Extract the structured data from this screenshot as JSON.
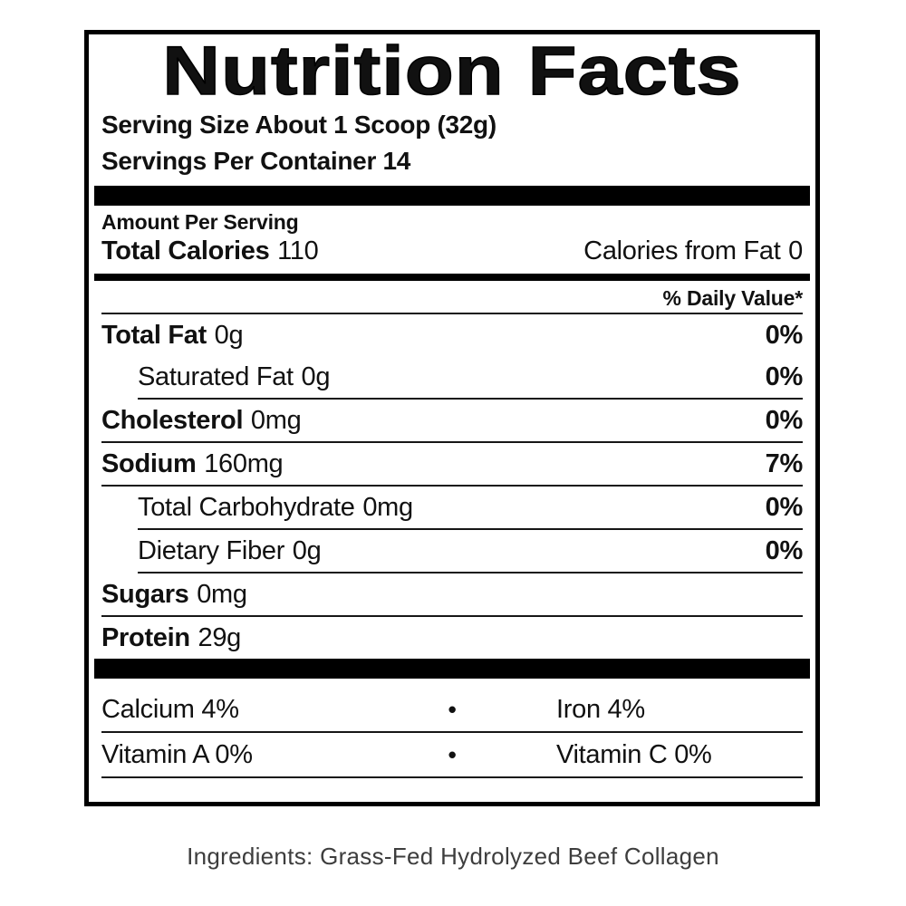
{
  "panel": {
    "title": "Nutrition Facts",
    "serving_size_line": "Serving Size About 1 Scoop (32g)",
    "servings_line": "Servings Per Container 14",
    "amount_per_serving": "Amount Per Serving",
    "total_calories": {
      "label": "Total Calories",
      "value": "110"
    },
    "calories_from_fat": {
      "label": "Calories from Fat",
      "value": "0"
    },
    "daily_value_header": "% Daily Value*",
    "rows": [
      {
        "name": "Total Fat",
        "amount": "0g",
        "dv": "0%"
      },
      {
        "name": "Saturated Fat",
        "amount": "0g",
        "dv": "0%"
      },
      {
        "name": "Cholesterol",
        "amount": "0mg",
        "dv": "0%"
      },
      {
        "name": "Sodium",
        "amount": "160mg",
        "dv": "7%"
      },
      {
        "name": "Total Carbohydrate",
        "amount": "0mg",
        "dv": "0%"
      },
      {
        "name": "Dietary Fiber",
        "amount": "0g",
        "dv": "0%"
      },
      {
        "name": "Sugars",
        "amount": "0mg",
        "dv": ""
      },
      {
        "name": "Protein",
        "amount": "29g",
        "dv": ""
      }
    ],
    "bullet": "•",
    "micronutrients": [
      {
        "left": "Calcium 4%",
        "right": "Iron 4%"
      },
      {
        "left": "Vitamin A 0%",
        "right": "Vitamin C 0%"
      }
    ],
    "colors": {
      "ink": "#111111",
      "ingredients_text": "#3d3d3d"
    }
  },
  "footer": {
    "ingredients": "Ingredients: Grass-Fed Hydrolyzed Beef Collagen"
  }
}
